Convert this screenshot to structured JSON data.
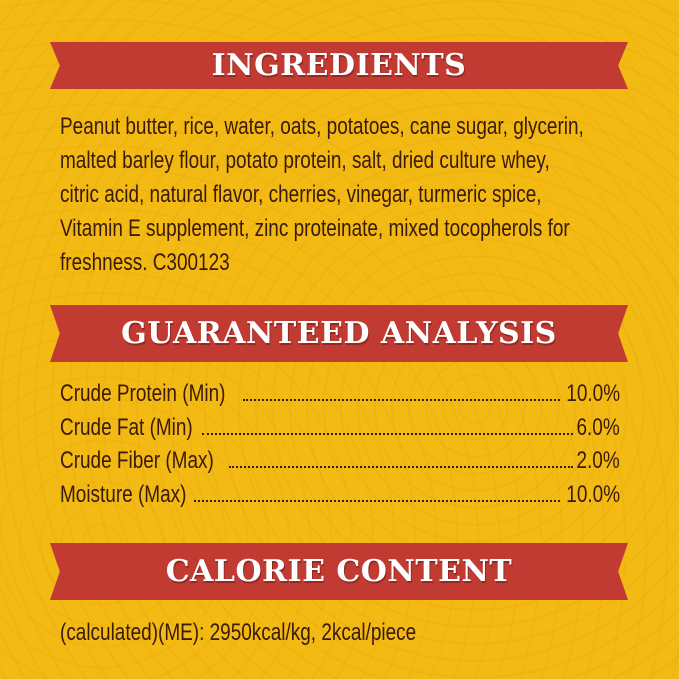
{
  "colors": {
    "background": "#F2BA12",
    "banner": "#C23B33",
    "text": "#3A1A08",
    "banner_text": "#FFFFFF"
  },
  "ingredients": {
    "heading": "INGREDIENTS",
    "lines": [
      "Peanut butter, rice, water, oats, potatoes, cane sugar, glycerin,",
      "malted barley flour, potato protein, salt, dried culture whey,",
      "citric acid, natural flavor, cherries, vinegar, turmeric spice,",
      "Vitamin E supplement, zinc proteinate, mixed tocopherols for",
      "freshness.  C300123"
    ]
  },
  "analysis": {
    "heading": "GUARANTEED ANALYSIS",
    "rows": [
      {
        "label": "Crude Protein (Min)",
        "value": "10.0%"
      },
      {
        "label": "Crude Fat (Min)",
        "value": "6.0%"
      },
      {
        "label": "Crude Fiber (Max)",
        "value": "2.0%"
      },
      {
        "label": "Moisture (Max)",
        "value": "10.0%"
      }
    ]
  },
  "calorie": {
    "heading": "CALORIE CONTENT",
    "text": "(calculated)(ME): 2950kcal/kg, 2kcal/piece"
  }
}
